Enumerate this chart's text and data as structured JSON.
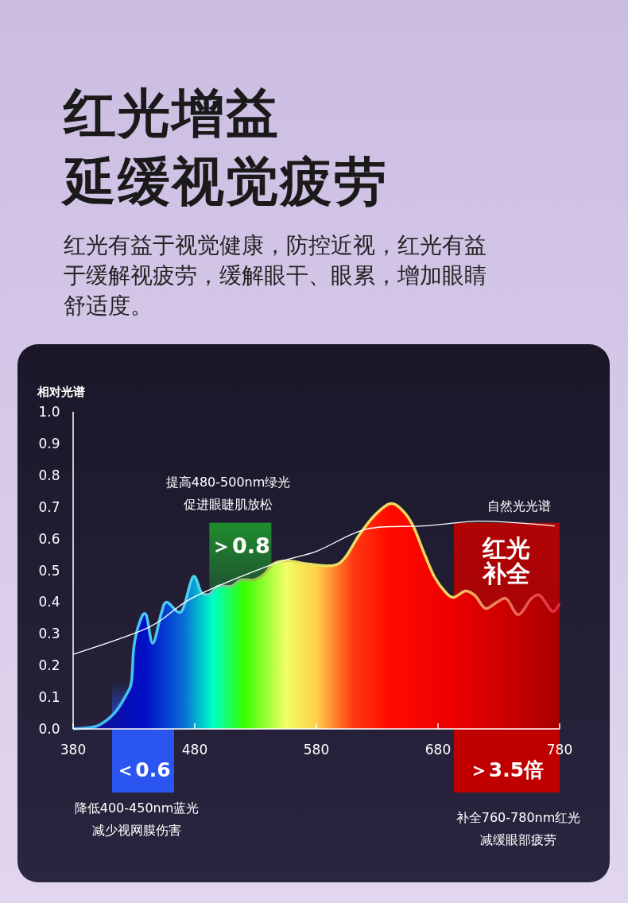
{
  "chart_data": {
    "type": "area",
    "title": "红光增益",
    "subtitle": "延缓视觉疲劳",
    "ylabel": "相对光谱",
    "xlim": [
      380,
      780
    ],
    "xticks": [
      380,
      480,
      580,
      680,
      780
    ],
    "ylim": [
      0,
      1
    ],
    "yticks": [
      {
        "value": 0,
        "label": "0.0"
      },
      0.1,
      0.2,
      0.3,
      0.4,
      0.5,
      0.6,
      0.7,
      0.8,
      0.9,
      {
        "value": 1,
        "label": "1.0"
      }
    ],
    "grid": false,
    "series": [
      {
        "x": [
          380,
          400,
          414,
          424,
          428,
          430,
          435,
          440,
          445.5,
          452.5,
          457,
          469,
          478.6,
          485.5,
          492.3,
          499,
          510,
          518,
          528.8,
          537.7,
          544.5,
          556,
          573,
          593.5,
          603.5,
          615,
          627,
          640.5,
          650.5,
          659.5,
          668,
          677,
          686.5,
          693,
          702.7,
          710.5,
          719,
          728.7,
          736.5,
          746,
          756.5,
          764,
          774,
          780
        ],
        "values": [
          0,
          0.01,
          0.05,
          0.11,
          0.15,
          0.26,
          0.34,
          0.36,
          0.27,
          0.365,
          0.4,
          0.37,
          0.48,
          0.43,
          0.425,
          0.45,
          0.45,
          0.47,
          0.47,
          0.49,
          0.52,
          0.53,
          0.52,
          0.515,
          0.54,
          0.61,
          0.67,
          0.71,
          0.69,
          0.64,
          0.56,
          0.48,
          0.43,
          0.415,
          0.435,
          0.42,
          0.38,
          0.4,
          0.41,
          0.36,
          0.41,
          0.42,
          0.37,
          0.395
        ]
      },
      {
        "type": "line",
        "name": "自然光光谱",
        "color": "#ffffff",
        "x": [
          380,
          442,
          479,
          544.5,
          580,
          621,
          668,
          712,
          744,
          776
        ],
        "values": [
          0.235,
          0.32,
          0.415,
          0.52,
          0.56,
          0.63,
          0.64,
          0.655,
          0.65,
          0.64
        ]
      }
    ],
    "bands": [
      {
        "axis": "x",
        "from": 492,
        "to": 543,
        "label": "＞0.8",
        "color": "#1f9a2e"
      },
      {
        "axis": "x",
        "from": 412,
        "to": 463,
        "label": "＜0.6",
        "color": "#2b55f0"
      },
      {
        "axis": "x",
        "from": 693,
        "to": 780,
        "label": "红光补全",
        "color": "#c00000"
      }
    ],
    "annotations": [
      "红光有益于视觉健康，防控近视，红光有益于缓解视疲劳，缓解眼干、眼累，增加眼睛舒适度。",
      "提高480-500nm绿光",
      "促进眼睫肌放松",
      "降低400-450nm蓝光",
      "减少视网膜伤害",
      "补全760-780nm红光",
      "减缓眼部疲劳",
      "＞3.5倍"
    ]
  }
}
